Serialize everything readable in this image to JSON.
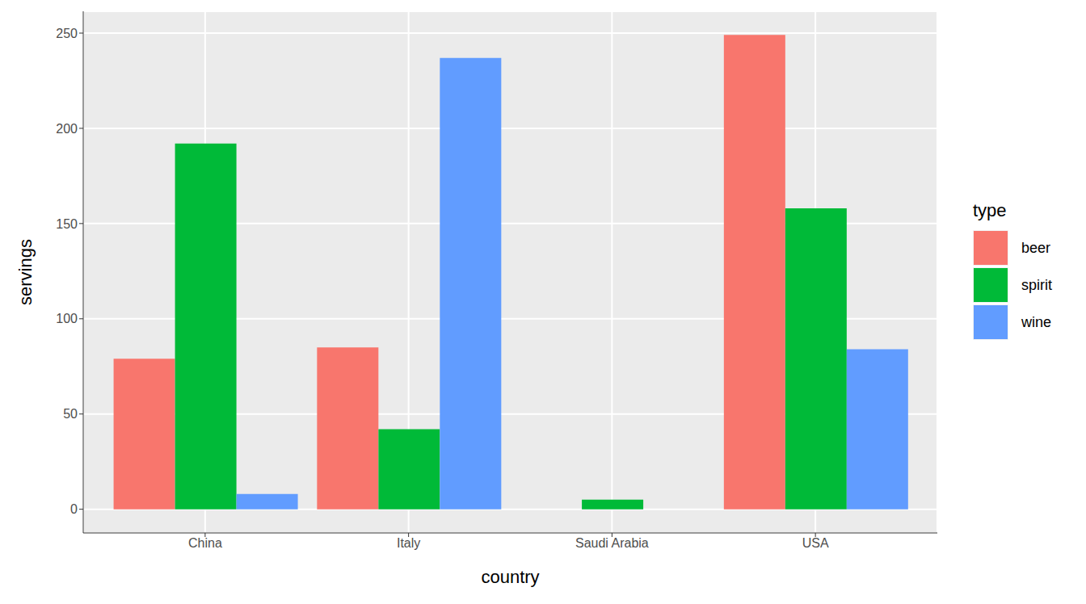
{
  "chart_data": {
    "type": "bar",
    "x_label": "country",
    "y_label": "servings",
    "legend_title": "type",
    "categories": [
      "China",
      "Italy",
      "Saudi Arabia",
      "USA"
    ],
    "series": [
      {
        "name": "beer",
        "color": "#F8766D",
        "values": [
          79,
          85,
          0,
          249
        ]
      },
      {
        "name": "spirit",
        "color": "#00BA38",
        "values": [
          192,
          42,
          5,
          158
        ]
      },
      {
        "name": "wine",
        "color": "#619CFF",
        "values": [
          8,
          237,
          0,
          84
        ]
      }
    ],
    "ylim": [
      -12.45,
      261.45
    ],
    "yticks": [
      0,
      50,
      100,
      150,
      200,
      250
    ],
    "grid": true,
    "legend": "right"
  }
}
